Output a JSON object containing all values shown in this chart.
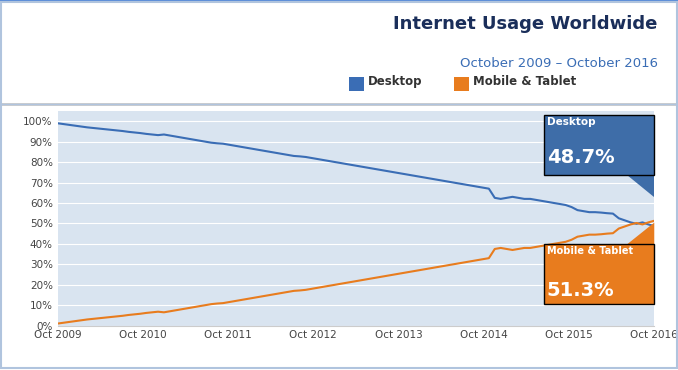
{
  "title": "Internet Usage Worldwide",
  "subtitle": "October 2009 – October 2016",
  "background_color": "#ffffff",
  "plot_bg_color": "#d9e4f0",
  "grid_color": "#ffffff",
  "x_labels": [
    "Oct 2009",
    "Oct 2010",
    "Oct 2011",
    "Oct 2012",
    "Oct 2013",
    "Oct 2014",
    "Oct 2015",
    "Oct 2016"
  ],
  "y_ticks": [
    0,
    10,
    20,
    30,
    40,
    50,
    60,
    70,
    80,
    90,
    100
  ],
  "desktop_color": "#3a6db5",
  "mobile_color": "#e87c1e",
  "desktop_label": "Desktop",
  "mobile_label": "Mobile & Tablet",
  "desktop_final": "48.7%",
  "mobile_final": "51.3%",
  "desktop_ann_color": "#3e6da8",
  "mobile_ann_color": "#e87c1e",
  "title_color": "#1a2e5a",
  "subtitle_color": "#3a6db5",
  "desktop_data": [
    99.0,
    98.6,
    98.2,
    97.8,
    97.4,
    97.0,
    96.7,
    96.4,
    96.1,
    95.8,
    95.5,
    95.2,
    94.8,
    94.5,
    94.2,
    93.8,
    93.5,
    93.2,
    93.5,
    93.0,
    92.5,
    92.0,
    91.5,
    91.0,
    90.5,
    90.0,
    89.5,
    89.2,
    89.0,
    88.5,
    88.0,
    87.5,
    87.0,
    86.5,
    86.0,
    85.5,
    85.0,
    84.5,
    84.0,
    83.5,
    83.0,
    82.8,
    82.5,
    82.0,
    81.5,
    81.0,
    80.5,
    80.0,
    79.5,
    79.0,
    78.5,
    78.0,
    77.5,
    77.0,
    76.5,
    76.0,
    75.5,
    75.0,
    74.5,
    74.0,
    73.5,
    73.0,
    72.5,
    72.0,
    71.5,
    71.0,
    70.5,
    70.0,
    69.5,
    69.0,
    68.5,
    68.0,
    67.5,
    67.0,
    62.5,
    62.0,
    62.5,
    63.0,
    62.5,
    62.0,
    62.0,
    61.5,
    61.0,
    60.5,
    60.0,
    59.5,
    59.0,
    58.0,
    56.5,
    56.0,
    55.5,
    55.5,
    55.3,
    55.0,
    54.8,
    52.5,
    51.5,
    50.5,
    49.8,
    50.5,
    49.5,
    48.7
  ],
  "mobile_data": [
    1.0,
    1.4,
    1.8,
    2.2,
    2.6,
    3.0,
    3.3,
    3.6,
    3.9,
    4.2,
    4.5,
    4.8,
    5.2,
    5.5,
    5.8,
    6.2,
    6.5,
    6.8,
    6.5,
    7.0,
    7.5,
    8.0,
    8.5,
    9.0,
    9.5,
    10.0,
    10.5,
    10.8,
    11.0,
    11.5,
    12.0,
    12.5,
    13.0,
    13.5,
    14.0,
    14.5,
    15.0,
    15.5,
    16.0,
    16.5,
    17.0,
    17.2,
    17.5,
    18.0,
    18.5,
    19.0,
    19.5,
    20.0,
    20.5,
    21.0,
    21.5,
    22.0,
    22.5,
    23.0,
    23.5,
    24.0,
    24.5,
    25.0,
    25.5,
    26.0,
    26.5,
    27.0,
    27.5,
    28.0,
    28.5,
    29.0,
    29.5,
    30.0,
    30.5,
    31.0,
    31.5,
    32.0,
    32.5,
    33.0,
    37.5,
    38.0,
    37.5,
    37.0,
    37.5,
    38.0,
    38.0,
    38.5,
    39.0,
    39.5,
    40.0,
    40.5,
    41.0,
    42.0,
    43.5,
    44.0,
    44.5,
    44.5,
    44.7,
    45.0,
    45.2,
    47.5,
    48.5,
    49.5,
    50.2,
    49.5,
    50.5,
    51.3
  ]
}
